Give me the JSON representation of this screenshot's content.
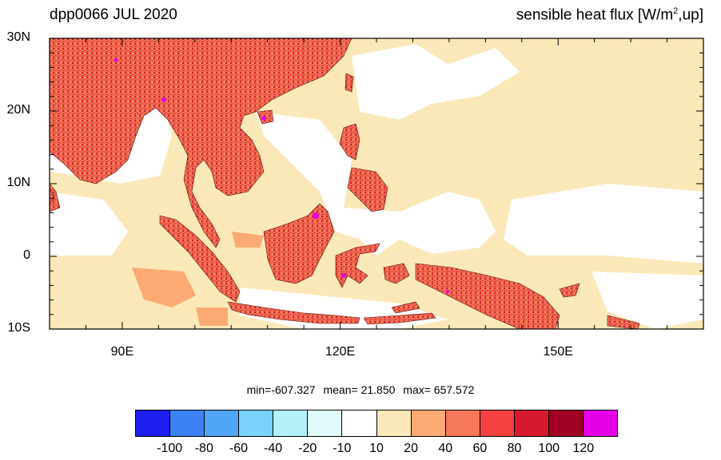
{
  "title_left": "dpp0066 JUL 2020",
  "title_right": {
    "main": "sensible heat flux [W/m",
    "sup": "2",
    "tail": ",up]"
  },
  "map": {
    "lon_range": [
      80,
      170
    ],
    "lat_range": [
      -10,
      30
    ],
    "lat_ticks": [
      {
        "value": 30,
        "label": "30N"
      },
      {
        "value": 20,
        "label": "20N"
      },
      {
        "value": 10,
        "label": "10N"
      },
      {
        "value": 0,
        "label": "0"
      },
      {
        "value": -10,
        "label": "10S"
      }
    ],
    "lon_ticks": [
      {
        "value": 90,
        "label": "90E"
      },
      {
        "value": 120,
        "label": "120E"
      },
      {
        "value": 150,
        "label": "150E"
      }
    ],
    "ocean_color": "#fbe8b8",
    "land_color": "#ee6a50"
  },
  "stats": {
    "min": "min=-607.327",
    "mean": "mean=  21.850",
    "max": "max= 657.572"
  },
  "colorbar": {
    "colors": [
      "#1e1ef0",
      "#3c82f5",
      "#50a5f5",
      "#78d2fa",
      "#b4f0fa",
      "#e1fafa",
      "#ffffff",
      "#fbe8b8",
      "#fbaa73",
      "#f5785a",
      "#f54040",
      "#d7192d",
      "#a00023",
      "#e600e6"
    ],
    "labels": [
      "-100",
      "-80",
      "-60",
      "-40",
      "-20",
      "-10",
      "10",
      "20",
      "40",
      "60",
      "80",
      "100",
      "120"
    ]
  }
}
